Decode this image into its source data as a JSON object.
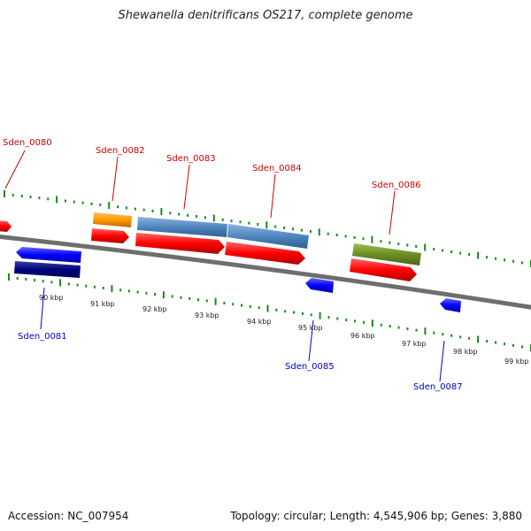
{
  "title": "Shewanella denitrificans OS217, complete genome",
  "footer": {
    "accession": "Accession: NC_007954",
    "stats": "Topology: circular; Length: 4,545,906 bp; Genes: 3,880"
  },
  "colors": {
    "backbone": "#808080",
    "ticks": "#1a8a1a",
    "label_top": "#cc0000",
    "label_bottom": "#0000cc",
    "cds": "#ff0000",
    "gene_orange": "#ff9900",
    "gene_steelblue": "#4f86bf",
    "gene_olive": "#6b8e23",
    "gene_blue": "#0000ff",
    "gene_navy": "#000080"
  },
  "scale": {
    "ticks": [
      "90 kbp",
      "91 kbp",
      "92 kbp",
      "93 kbp",
      "94 kbp",
      "95 kbp",
      "96 kbp",
      "97 kbp",
      "98 kbp",
      "99 kbp"
    ]
  },
  "genes_top": [
    {
      "name": "Sden_0080"
    },
    {
      "name": "Sden_0082"
    },
    {
      "name": "Sden_0083"
    },
    {
      "name": "Sden_0084"
    },
    {
      "name": "Sden_0086"
    }
  ],
  "genes_bottom": [
    {
      "name": "Sden_0081"
    },
    {
      "name": "Sden_0085"
    },
    {
      "name": "Sden_0087"
    }
  ]
}
